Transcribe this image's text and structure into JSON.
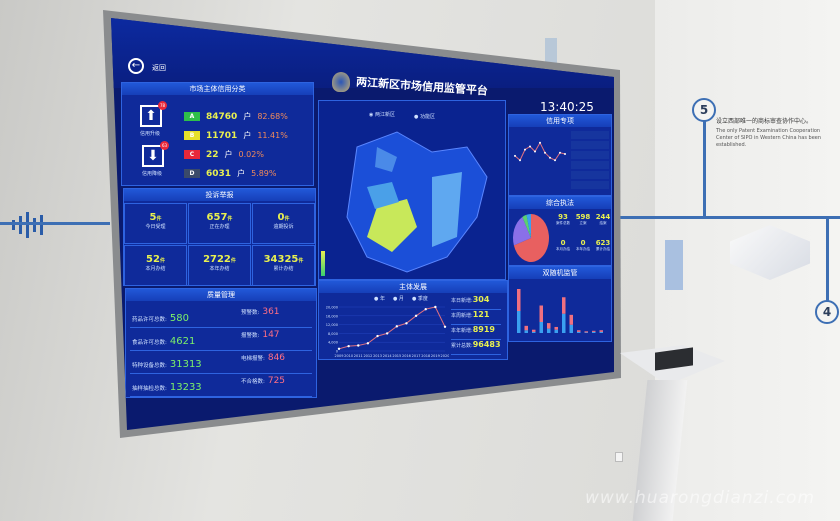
{
  "header": {
    "back_label": "返回",
    "title": "两江新区市场信用监管平台",
    "time": "13:40:25",
    "map_options": [
      "两江新区",
      "功能区"
    ]
  },
  "credit": {
    "title": "市场主体信用分类",
    "upgrade_label": "信用升级",
    "upgrade_badge": "78",
    "downgrade_label": "信用降级",
    "downgrade_badge": "63",
    "unit": "户",
    "rows": [
      {
        "grade": "A",
        "color": "#2fbf4a",
        "count": "84760",
        "pct": "82.68%"
      },
      {
        "grade": "B",
        "color": "#e6e02a",
        "count": "11701",
        "pct": "11.41%"
      },
      {
        "grade": "C",
        "color": "#e8283a",
        "count": "22",
        "pct": "0.02%"
      },
      {
        "grade": "D",
        "color": "#3a4a6a",
        "count": "6031",
        "pct": "5.89%"
      }
    ]
  },
  "complaints": {
    "title": "投诉举报",
    "unit": "件",
    "cells": [
      {
        "value": "5",
        "label": "今日受理"
      },
      {
        "value": "657",
        "label": "正在办理"
      },
      {
        "value": "0",
        "label": "逾期投诉"
      },
      {
        "value": "52",
        "label": "本月办结"
      },
      {
        "value": "2722",
        "label": "本年办结"
      },
      {
        "value": "34325",
        "label": "累计办结"
      }
    ]
  },
  "quality": {
    "title": "质量管理",
    "left": [
      {
        "label": "药品许可总数:",
        "value": "580"
      },
      {
        "label": "食品许可总数:",
        "value": "4621"
      },
      {
        "label": "特种设备总数:",
        "value": "31313"
      },
      {
        "label": "抽样抽检总数:",
        "value": "13233"
      }
    ],
    "right": [
      {
        "label": "预警数:",
        "value": "361"
      },
      {
        "label": "报警数:",
        "value": "147"
      },
      {
        "label": "电梯报警:",
        "value": "846"
      },
      {
        "label": "不合格数:",
        "value": "725"
      }
    ]
  },
  "development": {
    "title": "主体发展",
    "legend": [
      "年",
      "月",
      "季度"
    ],
    "stats": [
      {
        "label": "本日新增:",
        "value": "304"
      },
      {
        "label": "本周新增:",
        "value": "121"
      },
      {
        "label": "本年新增:",
        "value": "8919"
      },
      {
        "label": "累计总数:",
        "value": "96483"
      }
    ]
  },
  "chart_data": [
    {
      "type": "line",
      "title": "主体发展",
      "x": [
        "2009",
        "2010",
        "2011",
        "2012",
        "2013",
        "2014",
        "2015",
        "2016",
        "2017",
        "2018",
        "2019",
        "2020"
      ],
      "values": [
        1000,
        2200,
        2500,
        3500,
        6800,
        8000,
        11200,
        12600,
        16000,
        19000,
        20000,
        11000
      ],
      "ylim": [
        0,
        20000
      ],
      "yticks": [
        "0",
        "4,000",
        "8,000",
        "12,000",
        "16,000",
        "20,000"
      ]
    },
    {
      "type": "line",
      "title": "信用专项",
      "values": [
        45,
        38,
        55,
        60,
        52,
        66,
        50,
        42,
        38,
        50,
        48
      ],
      "ylim": [
        0,
        80
      ]
    },
    {
      "type": "pie",
      "title": "综合执法",
      "values": [
        70,
        22,
        4,
        4
      ],
      "colors": [
        "#e86060",
        "#8a70e8",
        "#5bd070",
        "#3aa0f0"
      ]
    },
    {
      "type": "bar",
      "title": "双随机监管",
      "values_a": [
        40,
        8,
        4,
        30,
        10,
        5,
        30,
        18,
        3,
        2,
        2,
        3
      ],
      "values_b": [
        40,
        5,
        2,
        20,
        8,
        6,
        35,
        15,
        2,
        1,
        2,
        2
      ]
    }
  ],
  "right_panel": {
    "credit_title": "信用专项",
    "enforce_title": "综合执法",
    "enforce_cells": [
      {
        "value": "93",
        "label": "案件总数"
      },
      {
        "value": "598",
        "label": "立案"
      },
      {
        "value": "244",
        "label": "结案"
      },
      {
        "value": "0",
        "label": "本月办结"
      },
      {
        "value": "0",
        "label": "本年办结"
      },
      {
        "value": "623",
        "label": "累计办结"
      }
    ],
    "random_title": "双随机监管"
  },
  "wall": {
    "step5": "5",
    "step4": "4",
    "caption_cn": "设立西部唯一的商标审查协作中心。",
    "caption_en": "The only Patent Examination Cooperation Center of SIPO in Western China has been established.",
    "watermark": "www.huarongdianzi.com"
  }
}
